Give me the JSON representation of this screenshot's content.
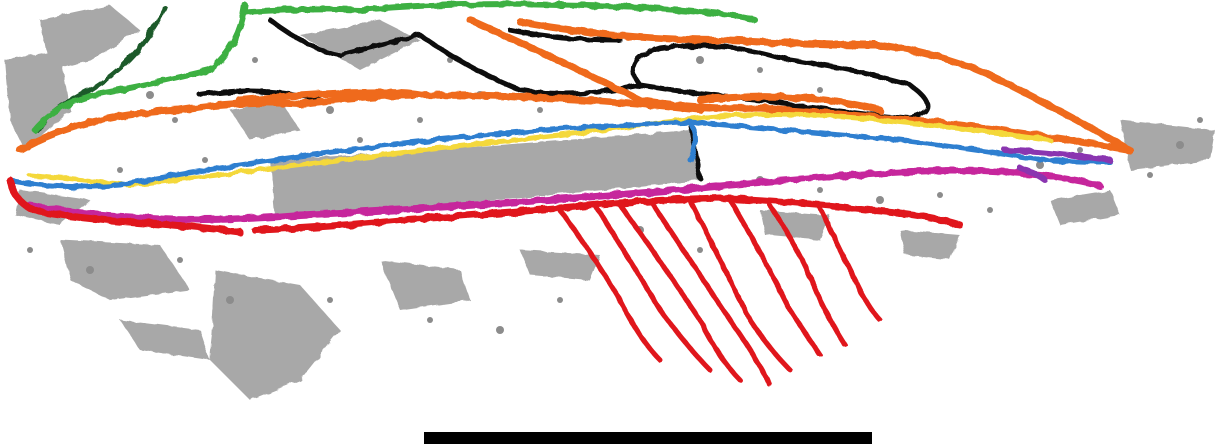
{
  "figure": {
    "kind": "3d-surface-reconstruction-of-fossil-skull-lateral-view",
    "background_color": "#ffffff",
    "scale_bar": {
      "color": "#000000",
      "label": ""
    }
  },
  "traced_structures": [
    {
      "name": "matrix-bone-fragments",
      "color": "#9a9a9a"
    },
    {
      "name": "dark-green-outline",
      "color": "#1d5a2a"
    },
    {
      "name": "green-outline",
      "color": "#3cb043"
    },
    {
      "name": "black-outline",
      "color": "#0a0a0a"
    },
    {
      "name": "orange-outline",
      "color": "#ef6a1a"
    },
    {
      "name": "yellow-outline",
      "color": "#f4d83a"
    },
    {
      "name": "blue-outline",
      "color": "#2f7fd0"
    },
    {
      "name": "magenta-outline",
      "color": "#c6289c"
    },
    {
      "name": "purple-outline",
      "color": "#8a34b0"
    },
    {
      "name": "red-outline",
      "color": "#e0161c"
    }
  ]
}
